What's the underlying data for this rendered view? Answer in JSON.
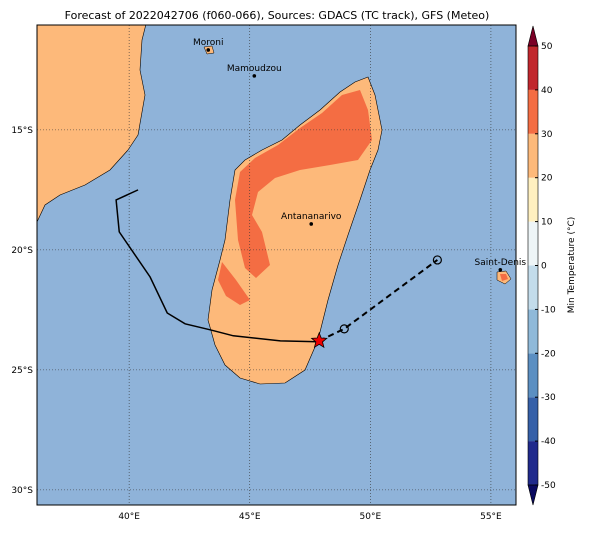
{
  "chart_data": {
    "type": "map",
    "title": "Forecast of 2022042706 (f060-066), Sources: GDACS (TC track), GFS (Meteo)",
    "xlim": [
      36.18,
      56.04
    ],
    "ylim": [
      -30.63,
      -10.63
    ],
    "xticks": [
      {
        "value": 40,
        "label": "40°E"
      },
      {
        "value": 45,
        "label": "45°E"
      },
      {
        "value": 50,
        "label": "50°E"
      },
      {
        "value": 55,
        "label": "55°E"
      }
    ],
    "yticks": [
      {
        "value": -15,
        "label": "15°S"
      },
      {
        "value": -20,
        "label": "20°S"
      },
      {
        "value": -25,
        "label": "25°S"
      },
      {
        "value": -30,
        "label": "30°S"
      }
    ],
    "grid": true,
    "cities": [
      {
        "name": "Moroni",
        "lon": 43.28,
        "lat": -11.67
      },
      {
        "name": "Mamoudzou",
        "lon": 45.19,
        "lat": -12.75
      },
      {
        "name": "Antananarivo",
        "lon": 47.55,
        "lat": -18.92
      },
      {
        "name": "Saint-Denis",
        "lon": 55.39,
        "lat": -20.83
      }
    ],
    "track_observed": {
      "lon": [
        40.37,
        39.46,
        39.59,
        40.87,
        41.58,
        42.32,
        43.36,
        44.32,
        46.27,
        47.84
      ],
      "lat": [
        -17.5,
        -17.92,
        -19.25,
        -21.13,
        -22.63,
        -23.08,
        -23.33,
        -23.58,
        -23.79,
        -23.83
      ]
    },
    "current_position": {
      "lon": 47.88,
      "lat": -23.79
    },
    "track_forecast": {
      "lon": [
        47.88,
        48.92,
        52.78
      ],
      "lat": [
        -23.79,
        -23.29,
        -20.42
      ]
    },
    "colorbar": {
      "label": "Min Temperature (°C)",
      "lim": [
        -50,
        50
      ],
      "ticks": [
        -50,
        -40,
        -30,
        -20,
        -10,
        0,
        10,
        20,
        30,
        40,
        50
      ],
      "colors": [
        "#202a8c",
        "#3560a8",
        "#5b8fc2",
        "#8fb9d9",
        "#c3dceb",
        "#eef5f7",
        "#fff0c0",
        "#fdb97a",
        "#f46d43",
        "#c1272d"
      ],
      "under": "#0a0a60",
      "over": "#7a0026"
    }
  }
}
